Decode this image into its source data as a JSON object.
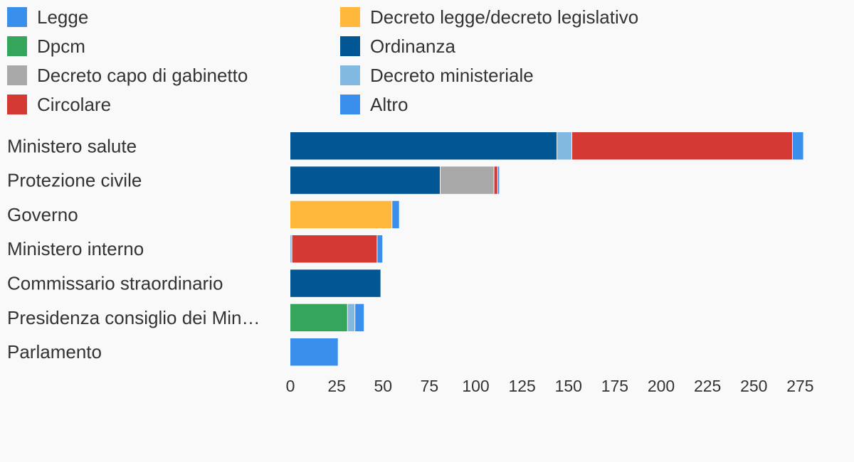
{
  "chart_data": {
    "type": "bar",
    "orientation": "horizontal",
    "stacked": true,
    "legend_position": "top",
    "grid": false,
    "categories": [
      "Ministero salute",
      "Protezione civile",
      "Governo",
      "Ministero interno",
      "Commissario straordinario",
      "Presidenza consiglio dei Min…",
      "Parlamento"
    ],
    "series": [
      {
        "name": "Legge",
        "color": "#3a8fec",
        "values": [
          0,
          0,
          0,
          0,
          0,
          0,
          26
        ]
      },
      {
        "name": "Decreto legge/decreto legislativo",
        "color": "#ffb83b",
        "values": [
          0,
          0,
          55,
          0,
          0,
          0,
          0
        ]
      },
      {
        "name": "Dpcm",
        "color": "#34a55a",
        "values": [
          0,
          0,
          0,
          0,
          0,
          31,
          0
        ]
      },
      {
        "name": "Ordinanza",
        "color": "#035694",
        "values": [
          144,
          81,
          0,
          0,
          49,
          0,
          0
        ]
      },
      {
        "name": "Decreto capo di gabinetto",
        "color": "#a8a8a8",
        "values": [
          0,
          29,
          0,
          0,
          0,
          0,
          0
        ]
      },
      {
        "name": "Decreto ministeriale",
        "color": "#82b9e0",
        "values": [
          8,
          0,
          0,
          1,
          0,
          4,
          0
        ]
      },
      {
        "name": "Circolare",
        "color": "#d43934",
        "values": [
          119,
          2,
          0,
          46,
          0,
          0,
          0
        ]
      },
      {
        "name": "Altro",
        "color": "#3a8fec",
        "values": [
          6,
          1,
          4,
          3,
          0,
          5,
          0
        ]
      }
    ],
    "xticks": [
      0,
      25,
      50,
      75,
      100,
      125,
      150,
      175,
      200,
      225,
      250,
      275
    ],
    "xlim": [
      0,
      280
    ],
    "xlabel": "",
    "ylabel": "",
    "title": ""
  }
}
